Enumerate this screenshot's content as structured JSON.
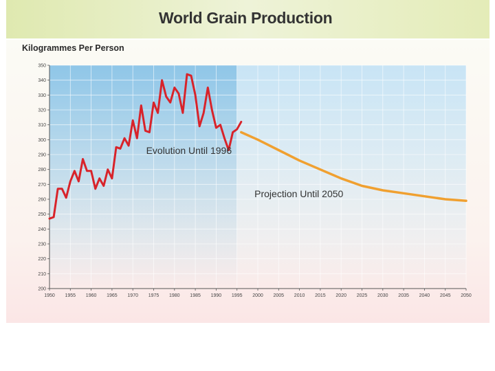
{
  "title": "World Grain Production",
  "chart_data": {
    "type": "line",
    "title": "World Grain Production",
    "ylabel": "Kilogrammes Per Person",
    "xlim": [
      1950,
      2050
    ],
    "ylim": [
      200,
      350
    ],
    "x_ticks": [
      1950,
      1955,
      1960,
      1965,
      1970,
      1975,
      1980,
      1985,
      1990,
      1995,
      2000,
      2005,
      2010,
      2015,
      2020,
      2025,
      2030,
      2035,
      2040,
      2045,
      2050
    ],
    "y_ticks": [
      200,
      210,
      220,
      230,
      240,
      250,
      260,
      270,
      280,
      290,
      300,
      310,
      320,
      330,
      340,
      350
    ],
    "grid": true,
    "annotations": [
      {
        "text": "Evolution Until 1996",
        "series": 0
      },
      {
        "text": "Projection Until 2050",
        "series": 1
      }
    ],
    "colors": {
      "historical": "#d8232a",
      "projection": "#f0a030",
      "historical_bg": "#8fc6e8",
      "projection_bg": "#c8e4f5"
    },
    "series": [
      {
        "values_x": [
          1950,
          1951,
          1952,
          1953,
          1954,
          1955,
          1956,
          1957,
          1958,
          1959,
          1960,
          1961,
          1962,
          1963,
          1964,
          1965,
          1966,
          1967,
          1968,
          1969,
          1970,
          1971,
          1972,
          1973,
          1974,
          1975,
          1976,
          1977,
          1978,
          1979,
          1980,
          1981,
          1982,
          1983,
          1984,
          1985,
          1986,
          1987,
          1988,
          1989,
          1990,
          1991,
          1992,
          1993,
          1994,
          1995,
          1996
        ],
        "values_y": [
          247,
          248,
          267,
          267,
          261,
          272,
          279,
          272,
          287,
          279,
          279,
          267,
          274,
          269,
          280,
          274,
          295,
          294,
          301,
          296,
          313,
          301,
          323,
          306,
          305,
          325,
          318,
          340,
          329,
          325,
          335,
          331,
          318,
          344,
          343,
          330,
          309,
          318,
          335,
          320,
          308,
          310,
          301,
          293,
          305,
          307,
          312
        ]
      },
      {
        "values_x": [
          1996,
          2000,
          2005,
          2010,
          2015,
          2020,
          2025,
          2030,
          2035,
          2040,
          2045,
          2050
        ],
        "values_y": [
          305,
          300,
          293,
          286,
          280,
          274,
          269,
          266,
          264,
          262,
          260,
          259
        ]
      }
    ]
  }
}
